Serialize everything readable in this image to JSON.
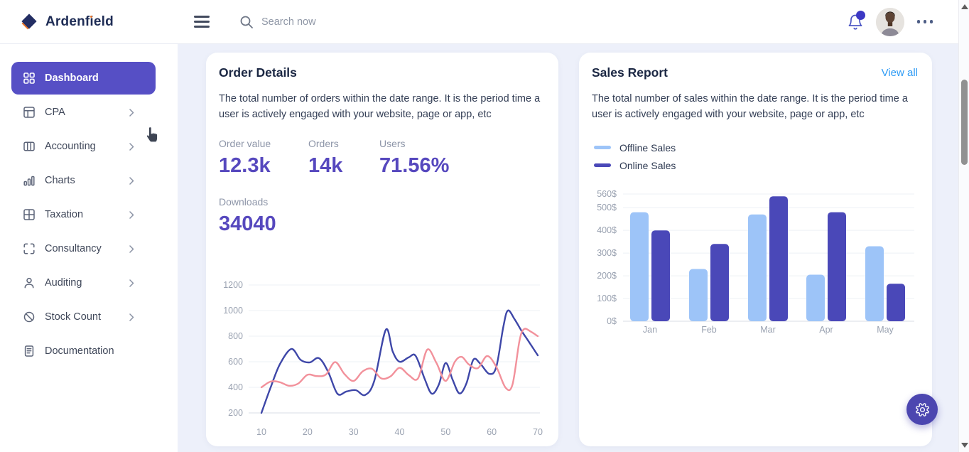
{
  "topbar": {
    "brand": "Ardenfield",
    "search_placeholder": "Search now"
  },
  "sidebar": {
    "items": [
      {
        "label": "Dashboard",
        "icon": "grid",
        "active": true,
        "chevron": false
      },
      {
        "label": "CPA",
        "icon": "layout",
        "active": false,
        "chevron": true
      },
      {
        "label": "Accounting",
        "icon": "columns",
        "active": false,
        "chevron": true
      },
      {
        "label": "Charts",
        "icon": "bar-chart",
        "active": false,
        "chevron": true
      },
      {
        "label": "Taxation",
        "icon": "table",
        "active": false,
        "chevron": true
      },
      {
        "label": "Consultancy",
        "icon": "corners",
        "active": false,
        "chevron": true
      },
      {
        "label": "Auditing",
        "icon": "user",
        "active": false,
        "chevron": true
      },
      {
        "label": "Stock Count",
        "icon": "slash",
        "active": false,
        "chevron": true
      },
      {
        "label": "Documentation",
        "icon": "file-text",
        "active": false,
        "chevron": false
      }
    ]
  },
  "order_details": {
    "title": "Order Details",
    "description": "The total number of orders within the date range. It is the period time a user is actively engaged with your website, page or app, etc",
    "stats": [
      {
        "label": "Order value",
        "value": "12.3k"
      },
      {
        "label": "Orders",
        "value": "14k"
      },
      {
        "label": "Users",
        "value": "71.56%"
      },
      {
        "label": "Downloads",
        "value": "34040"
      }
    ]
  },
  "sales_report": {
    "title": "Sales Report",
    "view_all": "View all",
    "description": "The total number of sales within the date range. It is the period time a user is actively engaged with your website, page or app, etc"
  },
  "chart_data": [
    {
      "type": "line",
      "x_ticks": [
        10,
        20,
        30,
        40,
        50,
        60,
        70
      ],
      "y_ticks": [
        200,
        400,
        600,
        800,
        1000,
        1200
      ],
      "x_range": [
        10,
        70
      ],
      "y_range": [
        200,
        1200
      ],
      "grid": true,
      "series": [
        {
          "name": "orders-line",
          "color": "#3e47a8",
          "points": [
            [
              10,
              200
            ],
            [
              12,
              400
            ],
            [
              14,
              580
            ],
            [
              16.5,
              700
            ],
            [
              18.5,
              615
            ],
            [
              20.5,
              595
            ],
            [
              22.5,
              628
            ],
            [
              24.5,
              520
            ],
            [
              26.5,
              350
            ],
            [
              28.5,
              368
            ],
            [
              30.5,
              378
            ],
            [
              32.5,
              340
            ],
            [
              34.5,
              450
            ],
            [
              37,
              850
            ],
            [
              38.5,
              680
            ],
            [
              40,
              600
            ],
            [
              42,
              635
            ],
            [
              43.5,
              645
            ],
            [
              45.5,
              460
            ],
            [
              47,
              350
            ],
            [
              48.5,
              420
            ],
            [
              50,
              590
            ],
            [
              51.5,
              460
            ],
            [
              53,
              352
            ],
            [
              54.5,
              430
            ],
            [
              56,
              615
            ],
            [
              57.5,
              585
            ],
            [
              59.5,
              505
            ],
            [
              61,
              560
            ],
            [
              62.5,
              870
            ],
            [
              63.5,
              1000
            ],
            [
              65,
              930
            ],
            [
              66.5,
              840
            ],
            [
              68,
              760
            ],
            [
              70,
              650
            ]
          ]
        },
        {
          "name": "users-line",
          "color": "#f2919b",
          "points": [
            [
              10,
              400
            ],
            [
              12,
              445
            ],
            [
              14,
              440
            ],
            [
              16,
              412
            ],
            [
              18,
              430
            ],
            [
              20,
              498
            ],
            [
              22,
              488
            ],
            [
              24,
              500
            ],
            [
              26,
              598
            ],
            [
              28,
              505
            ],
            [
              30,
              450
            ],
            [
              32,
              525
            ],
            [
              34,
              545
            ],
            [
              36,
              470
            ],
            [
              38,
              485
            ],
            [
              40,
              553
            ],
            [
              42,
              495
            ],
            [
              44,
              470
            ],
            [
              46,
              695
            ],
            [
              48,
              590
            ],
            [
              50,
              450
            ],
            [
              52,
              600
            ],
            [
              53.5,
              638
            ],
            [
              55,
              580
            ],
            [
              57,
              550
            ],
            [
              59,
              645
            ],
            [
              61,
              560
            ],
            [
              63,
              398
            ],
            [
              64.5,
              420
            ],
            [
              66,
              760
            ],
            [
              67,
              855
            ],
            [
              68.5,
              835
            ],
            [
              70,
              800
            ]
          ]
        }
      ]
    },
    {
      "type": "bar",
      "categories": [
        "Jan",
        "Feb",
        "Mar",
        "Apr",
        "May"
      ],
      "y_ticks": [
        "0$",
        "100$",
        "200$",
        "300$",
        "400$",
        "500$",
        "560$"
      ],
      "y_tick_values": [
        0,
        100,
        200,
        300,
        400,
        500,
        560
      ],
      "y_range": [
        0,
        560
      ],
      "grid": true,
      "legend_position": "top-left",
      "series": [
        {
          "name": "Offline Sales",
          "color": "#9dc4f8",
          "values": [
            480,
            230,
            470,
            205,
            330
          ]
        },
        {
          "name": "Online Sales",
          "color": "#4a48b8",
          "values": [
            400,
            340,
            550,
            480,
            165
          ]
        }
      ]
    }
  ]
}
